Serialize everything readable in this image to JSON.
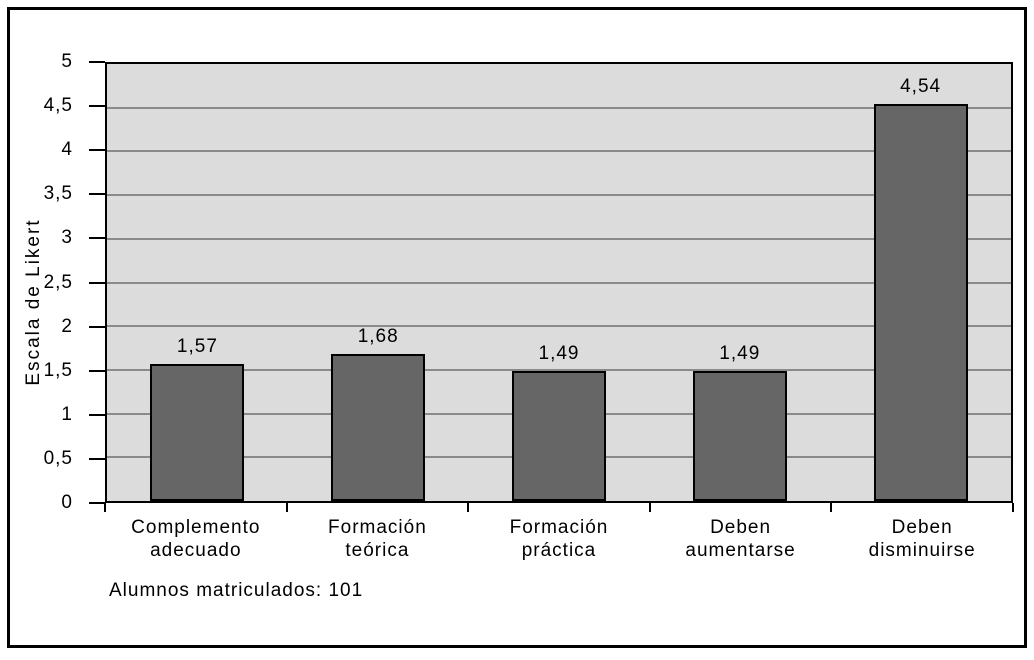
{
  "figure": {
    "footnote": "Alumnos matriculados: 101"
  },
  "chart_data": {
    "type": "bar",
    "ylabel": "Escala de Likert",
    "xlabel": "",
    "categories": [
      "Complemento\nadecuado",
      "Formación\nteórica",
      "Formación\npráctica",
      "Deben\naumentarse",
      "Deben\ndisminuirse"
    ],
    "values": [
      1.57,
      1.68,
      1.49,
      1.49,
      4.54
    ],
    "value_labels": [
      "1,57",
      "1,68",
      "1,49",
      "1,49",
      "4,54"
    ],
    "ylim": [
      0,
      5
    ],
    "ytick_step": 0.5,
    "ytick_labels": [
      "0",
      "0,5",
      "1",
      "1,5",
      "2",
      "2,5",
      "3",
      "3,5",
      "4",
      "4,5",
      "5"
    ],
    "grid": true,
    "legend": false,
    "colors": {
      "bar_fill": "#666666",
      "bar_border": "#000000",
      "plot_background": "#dcdcdd",
      "gridline": "#8a8a8a",
      "axis": "#000000",
      "text": "#000000",
      "page_background": "#ffffff"
    }
  }
}
